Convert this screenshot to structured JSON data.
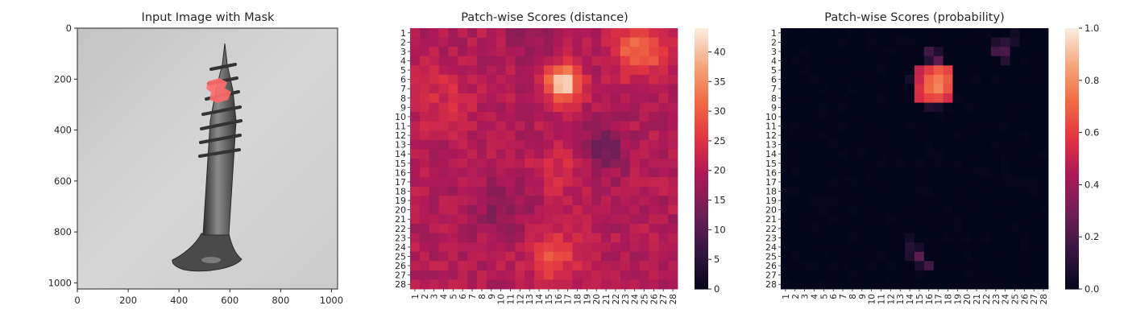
{
  "chart_data": [
    {
      "type": "image",
      "title": "Input Image with Mask",
      "xlim": [
        0,
        1024
      ],
      "ylim": [
        1024,
        0
      ],
      "xticks": [
        0,
        200,
        400,
        600,
        800,
        1000
      ],
      "yticks": [
        0,
        200,
        400,
        600,
        800,
        1000
      ],
      "image_description_colors": {
        "background": "#cfcfcf",
        "object": "#4a4a4a",
        "mask": "#ff6b6b"
      }
    },
    {
      "type": "heatmap",
      "title": "Patch-wise Scores (distance)",
      "rows": 28,
      "cols": 28,
      "row_labels": [
        "1",
        "2",
        "3",
        "4",
        "5",
        "6",
        "7",
        "8",
        "9",
        "10",
        "11",
        "12",
        "13",
        "14",
        "15",
        "16",
        "17",
        "18",
        "19",
        "20",
        "21",
        "22",
        "23",
        "24",
        "25",
        "26",
        "27",
        "28"
      ],
      "col_labels": [
        "1",
        "2",
        "3",
        "4",
        "5",
        "6",
        "7",
        "8",
        "9",
        "10",
        "11",
        "12",
        "13",
        "14",
        "15",
        "16",
        "17",
        "18",
        "19",
        "20",
        "21",
        "22",
        "23",
        "24",
        "25",
        "26",
        "27",
        "28"
      ],
      "vmin": 0,
      "vmax": 44,
      "colorbar_ticks": [
        0,
        5,
        10,
        15,
        20,
        25,
        30,
        35,
        40
      ],
      "colormap": "rocket",
      "base_value": 20,
      "hotspots": [
        {
          "row": 6.5,
          "col": 16.5,
          "peak": 23,
          "sigma": 1.3
        },
        {
          "row": 3.0,
          "col": 24.5,
          "peak": 12,
          "sigma": 1.9
        },
        {
          "row": 25.0,
          "col": 15.5,
          "peak": 9,
          "sigma": 1.8
        },
        {
          "row": 8.0,
          "col": 3.5,
          "peak": 4,
          "sigma": 2.5
        },
        {
          "row": 16.0,
          "col": 16.5,
          "peak": 4,
          "sigma": 2.0
        },
        {
          "row": 13.5,
          "col": 20.5,
          "peak": -7,
          "sigma": 1.8
        },
        {
          "row": 19.5,
          "col": 9.5,
          "peak": -4,
          "sigma": 2.2
        },
        {
          "row": 2.0,
          "col": 13.0,
          "peak": -4,
          "sigma": 1.6
        }
      ]
    },
    {
      "type": "heatmap",
      "title": "Patch-wise Scores (probability)",
      "rows": 28,
      "cols": 28,
      "row_labels": [
        "1",
        "2",
        "3",
        "4",
        "5",
        "6",
        "7",
        "8",
        "9",
        "10",
        "11",
        "12",
        "13",
        "14",
        "15",
        "16",
        "17",
        "18",
        "19",
        "20",
        "21",
        "22",
        "23",
        "24",
        "25",
        "26",
        "27",
        "28"
      ],
      "col_labels": [
        "1",
        "2",
        "3",
        "4",
        "5",
        "6",
        "7",
        "8",
        "9",
        "10",
        "11",
        "12",
        "13",
        "14",
        "15",
        "16",
        "17",
        "18",
        "19",
        "20",
        "21",
        "22",
        "23",
        "24",
        "25",
        "26",
        "27",
        "28"
      ],
      "vmin": 0.0,
      "vmax": 1.0,
      "colorbar_ticks": [
        0.0,
        0.2,
        0.4,
        0.6,
        0.8,
        1.0
      ],
      "colorbar_tick_labels": [
        "0.0",
        "0.2",
        "0.4",
        "0.6",
        "0.8",
        "1.0"
      ],
      "colormap": "rocket",
      "cells": [
        {
          "row": 5,
          "col": 16,
          "value": 0.6
        },
        {
          "row": 5,
          "col": 17,
          "value": 0.68
        },
        {
          "row": 5,
          "col": 18,
          "value": 0.62
        },
        {
          "row": 6,
          "col": 16,
          "value": 0.7
        },
        {
          "row": 6,
          "col": 17,
          "value": 0.76
        },
        {
          "row": 6,
          "col": 18,
          "value": 0.68
        },
        {
          "row": 7,
          "col": 16,
          "value": 0.72
        },
        {
          "row": 7,
          "col": 17,
          "value": 0.78
        },
        {
          "row": 7,
          "col": 18,
          "value": 0.66
        },
        {
          "row": 8,
          "col": 15,
          "value": 0.55
        },
        {
          "row": 8,
          "col": 16,
          "value": 0.62
        },
        {
          "row": 8,
          "col": 17,
          "value": 0.64
        },
        {
          "row": 8,
          "col": 18,
          "value": 0.55
        },
        {
          "row": 5,
          "col": 15,
          "value": 0.5
        },
        {
          "row": 6,
          "col": 15,
          "value": 0.52
        },
        {
          "row": 7,
          "col": 15,
          "value": 0.56
        },
        {
          "row": 3,
          "col": 16,
          "value": 0.18
        },
        {
          "row": 3,
          "col": 17,
          "value": 0.08
        },
        {
          "row": 4,
          "col": 16,
          "value": 0.1
        },
        {
          "row": 4,
          "col": 17,
          "value": 0.25
        },
        {
          "row": 9,
          "col": 16,
          "value": 0.08
        },
        {
          "row": 9,
          "col": 17,
          "value": 0.06
        },
        {
          "row": 6,
          "col": 14,
          "value": 0.06
        },
        {
          "row": 2,
          "col": 23,
          "value": 0.08
        },
        {
          "row": 2,
          "col": 24,
          "value": 0.12
        },
        {
          "row": 2,
          "col": 25,
          "value": 0.06
        },
        {
          "row": 3,
          "col": 23,
          "value": 0.18
        },
        {
          "row": 3,
          "col": 24,
          "value": 0.2
        },
        {
          "row": 4,
          "col": 24,
          "value": 0.1
        },
        {
          "row": 1,
          "col": 25,
          "value": 0.04
        },
        {
          "row": 24,
          "col": 14,
          "value": 0.1
        },
        {
          "row": 25,
          "col": 14,
          "value": 0.08
        },
        {
          "row": 25,
          "col": 15,
          "value": 0.25
        },
        {
          "row": 26,
          "col": 16,
          "value": 0.18
        },
        {
          "row": 24,
          "col": 15,
          "value": 0.06
        },
        {
          "row": 23,
          "col": 14,
          "value": 0.05
        },
        {
          "row": 26,
          "col": 15,
          "value": 0.07
        }
      ]
    }
  ]
}
